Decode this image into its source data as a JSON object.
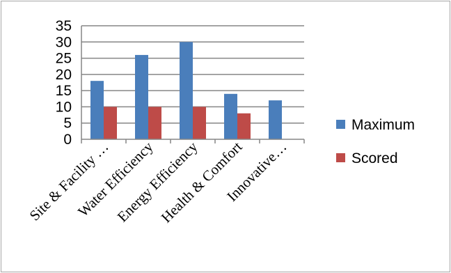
{
  "chart_data": {
    "type": "bar",
    "categories": [
      "Site & Facility …",
      "Water Efficiency",
      "Energy Efficiency",
      "Health & Comfort",
      "Innovative…"
    ],
    "series": [
      {
        "name": "Maximum",
        "color": "#4a7ebb",
        "values": [
          18,
          26,
          30,
          14,
          12
        ]
      },
      {
        "name": "Scored",
        "color": "#be4b48",
        "values": [
          10,
          10,
          10,
          8,
          null
        ]
      }
    ],
    "yticks": [
      "0",
      "5",
      "10",
      "15",
      "20",
      "25",
      "30",
      "35"
    ],
    "ylim": [
      0,
      35
    ],
    "grid": true,
    "legend_position": "right",
    "title": "",
    "xlabel": "",
    "ylabel": ""
  }
}
